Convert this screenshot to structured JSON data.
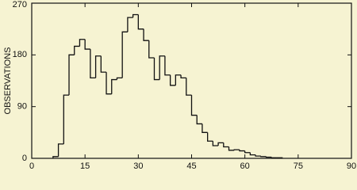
{
  "chart_data": {
    "type": "histogram",
    "y_label": "OBSERVATIONS",
    "color": "#111111",
    "bins": [
      6,
      7.5,
      9,
      10.5,
      12,
      13.5,
      15,
      16.5,
      18,
      19.5,
      21,
      22.5,
      24,
      25.5,
      27,
      28.5,
      30,
      31.5,
      33,
      34.5,
      36,
      37.5,
      39,
      40.5,
      42,
      43.5,
      45,
      46.5,
      48,
      49.5,
      51,
      52.5,
      54,
      55.5,
      57,
      58.5,
      60,
      61.5,
      63,
      64.5,
      66,
      67.5,
      69,
      70.5
    ],
    "values": [
      3,
      25,
      110,
      180,
      195,
      207,
      190,
      140,
      178,
      150,
      112,
      137,
      140,
      220,
      245,
      250,
      225,
      205,
      175,
      137,
      178,
      145,
      127,
      145,
      140,
      110,
      75,
      60,
      45,
      30,
      22,
      27,
      20,
      14,
      15,
      13,
      10,
      6,
      4,
      3,
      2,
      1,
      1
    ],
    "xlim": [
      0,
      90
    ],
    "xticks": [
      0,
      15,
      30,
      45,
      60,
      75,
      90
    ],
    "ylim": [
      0,
      270
    ],
    "yticks": [
      0,
      90,
      180,
      270
    ]
  }
}
